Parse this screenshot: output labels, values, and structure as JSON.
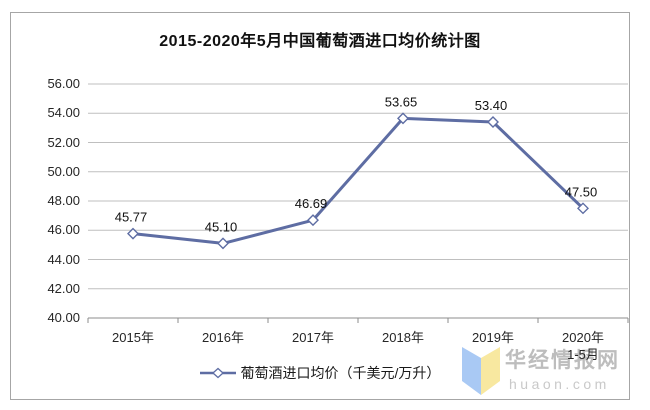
{
  "title": "2015-2020年5月中国葡萄酒进口均价统计图",
  "chart_data": {
    "type": "line",
    "title": "2015-2020年5月中国葡萄酒进口均价统计图",
    "categories": [
      "2015年",
      "2016年",
      "2017年",
      "2018年",
      "2019年",
      "2020年"
    ],
    "category_sublabels": [
      "",
      "",
      "",
      "",
      "",
      "1-5月"
    ],
    "values": [
      45.77,
      45.1,
      46.69,
      53.65,
      53.4,
      47.5
    ],
    "data_labels": [
      "45.77",
      "45.10",
      "46.69",
      "53.65",
      "53.40",
      "47.50"
    ],
    "series_name": "葡萄酒进口均价（千美元/万升）",
    "xlabel": "",
    "ylabel": "",
    "ylim": [
      40,
      56
    ],
    "y_tick_step": 2,
    "y_ticks": [
      "56.00",
      "54.00",
      "52.00",
      "50.00",
      "48.00",
      "46.00",
      "44.00",
      "42.00",
      "40.00"
    ],
    "grid": true,
    "legend_position": "bottom",
    "marker": "diamond"
  },
  "legend": {
    "label": "葡萄酒进口均价（千美元/万升）"
  },
  "watermark": {
    "name": "华经情报网",
    "domain": "huaon.com"
  },
  "colors": {
    "line": "#5e6da3",
    "marker_fill": "#ffffff",
    "gridline": "#bfbfbf",
    "axis": "#8c8c8c",
    "frame_border": "#a6a6a6",
    "logo_blue": "#a9c9f4",
    "logo_yellow": "#f8e8a0",
    "watermark_text": "#bdbdbd"
  }
}
